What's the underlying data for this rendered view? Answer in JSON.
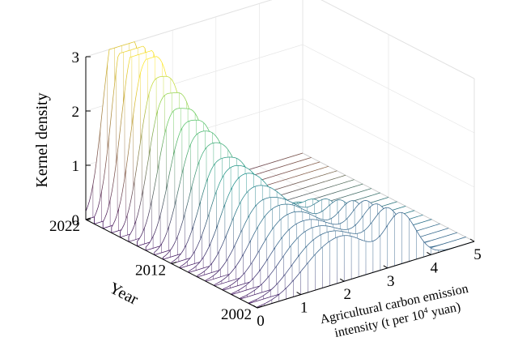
{
  "chart_data": {
    "type": "surface",
    "title": "",
    "xlabel_line1": "Agricultural carbon emission",
    "xlabel_line2_pre": "intensity (t per 10",
    "xlabel_line2_sup": "4",
    "xlabel_line2_post": " yuan)",
    "ylabel": "Year",
    "zlabel": "Kernel density",
    "xlim": [
      0,
      5
    ],
    "ylim": [
      2002,
      2022
    ],
    "zlim": [
      0,
      3
    ],
    "x_ticks": [
      "0",
      "1",
      "2",
      "3",
      "4",
      "5"
    ],
    "y_ticks": [
      "2002",
      "2012",
      "2022"
    ],
    "z_ticks": [
      "0",
      "1",
      "2",
      "3"
    ],
    "grid": true,
    "colormap": [
      "#440154",
      "#3b528b",
      "#21918c",
      "#5ec962",
      "#fde725"
    ],
    "years": [
      2002,
      2003,
      2004,
      2005,
      2006,
      2007,
      2008,
      2009,
      2010,
      2011,
      2012,
      2013,
      2014,
      2015,
      2016,
      2017,
      2018,
      2019,
      2020,
      2021,
      2022
    ],
    "series": [
      {
        "year": 2002,
        "peaks": [
          [
            1.45,
            0.55,
            0.55
          ],
          [
            2.2,
            0.55,
            0.5
          ],
          [
            3.3,
            0.9,
            0.35
          ]
        ]
      },
      {
        "year": 2003,
        "peaks": [
          [
            1.4,
            0.6,
            0.5
          ],
          [
            2.2,
            0.6,
            0.5
          ],
          [
            3.2,
            0.9,
            0.35
          ]
        ]
      },
      {
        "year": 2004,
        "peaks": [
          [
            1.35,
            0.65,
            0.5
          ],
          [
            2.15,
            0.6,
            0.5
          ],
          [
            3.15,
            0.9,
            0.35
          ]
        ]
      },
      {
        "year": 2005,
        "peaks": [
          [
            1.3,
            0.7,
            0.48
          ],
          [
            2.1,
            0.65,
            0.48
          ],
          [
            3.1,
            0.9,
            0.35
          ]
        ]
      },
      {
        "year": 2006,
        "peaks": [
          [
            1.25,
            0.75,
            0.46
          ],
          [
            2.0,
            0.7,
            0.46
          ],
          [
            3.0,
            0.85,
            0.35
          ]
        ]
      },
      {
        "year": 2007,
        "peaks": [
          [
            1.2,
            0.85,
            0.44
          ],
          [
            1.95,
            0.75,
            0.44
          ],
          [
            2.9,
            0.8,
            0.35
          ]
        ]
      },
      {
        "year": 2008,
        "peaks": [
          [
            1.15,
            0.95,
            0.42
          ],
          [
            1.9,
            0.8,
            0.42
          ],
          [
            2.8,
            0.75,
            0.35
          ]
        ]
      },
      {
        "year": 2009,
        "peaks": [
          [
            1.1,
            1.05,
            0.4
          ],
          [
            1.8,
            0.9,
            0.4
          ],
          [
            2.7,
            0.7,
            0.35
          ]
        ]
      },
      {
        "year": 2010,
        "peaks": [
          [
            1.05,
            1.15,
            0.38
          ],
          [
            1.7,
            1.0,
            0.38
          ],
          [
            2.6,
            0.6,
            0.35
          ]
        ]
      },
      {
        "year": 2011,
        "peaks": [
          [
            1.0,
            1.25,
            0.36
          ],
          [
            1.65,
            1.1,
            0.36
          ],
          [
            2.5,
            0.55,
            0.35
          ]
        ]
      },
      {
        "year": 2012,
        "peaks": [
          [
            0.95,
            1.35,
            0.34
          ],
          [
            1.6,
            1.25,
            0.34
          ],
          [
            2.45,
            0.5,
            0.35
          ]
        ]
      },
      {
        "year": 2013,
        "peaks": [
          [
            0.9,
            1.45,
            0.33
          ],
          [
            1.5,
            1.35,
            0.33
          ],
          [
            2.35,
            0.45,
            0.35
          ]
        ]
      },
      {
        "year": 2014,
        "peaks": [
          [
            0.85,
            1.6,
            0.32
          ],
          [
            1.45,
            1.5,
            0.32
          ],
          [
            2.3,
            0.4,
            0.35
          ]
        ]
      },
      {
        "year": 2015,
        "peaks": [
          [
            0.8,
            1.75,
            0.31
          ],
          [
            1.4,
            1.65,
            0.31
          ],
          [
            2.2,
            0.35,
            0.35
          ]
        ]
      },
      {
        "year": 2016,
        "peaks": [
          [
            0.75,
            1.95,
            0.3
          ],
          [
            1.35,
            1.8,
            0.3
          ],
          [
            2.1,
            0.3,
            0.35
          ]
        ]
      },
      {
        "year": 2017,
        "peaks": [
          [
            0.72,
            2.1,
            0.29
          ],
          [
            1.3,
            2.0,
            0.29
          ],
          [
            2.0,
            0.25,
            0.35
          ]
        ]
      },
      {
        "year": 2018,
        "peaks": [
          [
            0.7,
            2.25,
            0.28
          ],
          [
            1.25,
            2.15,
            0.28
          ],
          [
            1.9,
            0.2,
            0.35
          ]
        ]
      },
      {
        "year": 2019,
        "peaks": [
          [
            0.68,
            2.45,
            0.27
          ],
          [
            1.2,
            2.35,
            0.27
          ],
          [
            1.85,
            0.2,
            0.35
          ]
        ]
      },
      {
        "year": 2020,
        "peaks": [
          [
            0.65,
            2.7,
            0.26
          ],
          [
            1.15,
            2.55,
            0.26
          ],
          [
            1.8,
            0.15,
            0.35
          ]
        ]
      },
      {
        "year": 2021,
        "peaks": [
          [
            0.62,
            2.85,
            0.25
          ],
          [
            1.1,
            2.75,
            0.25
          ],
          [
            1.75,
            0.15,
            0.35
          ]
        ]
      },
      {
        "year": 2022,
        "peaks": [
          [
            0.6,
            2.7,
            0.25
          ],
          [
            1.05,
            2.95,
            0.25
          ],
          [
            1.7,
            0.15,
            0.35
          ]
        ]
      }
    ]
  }
}
